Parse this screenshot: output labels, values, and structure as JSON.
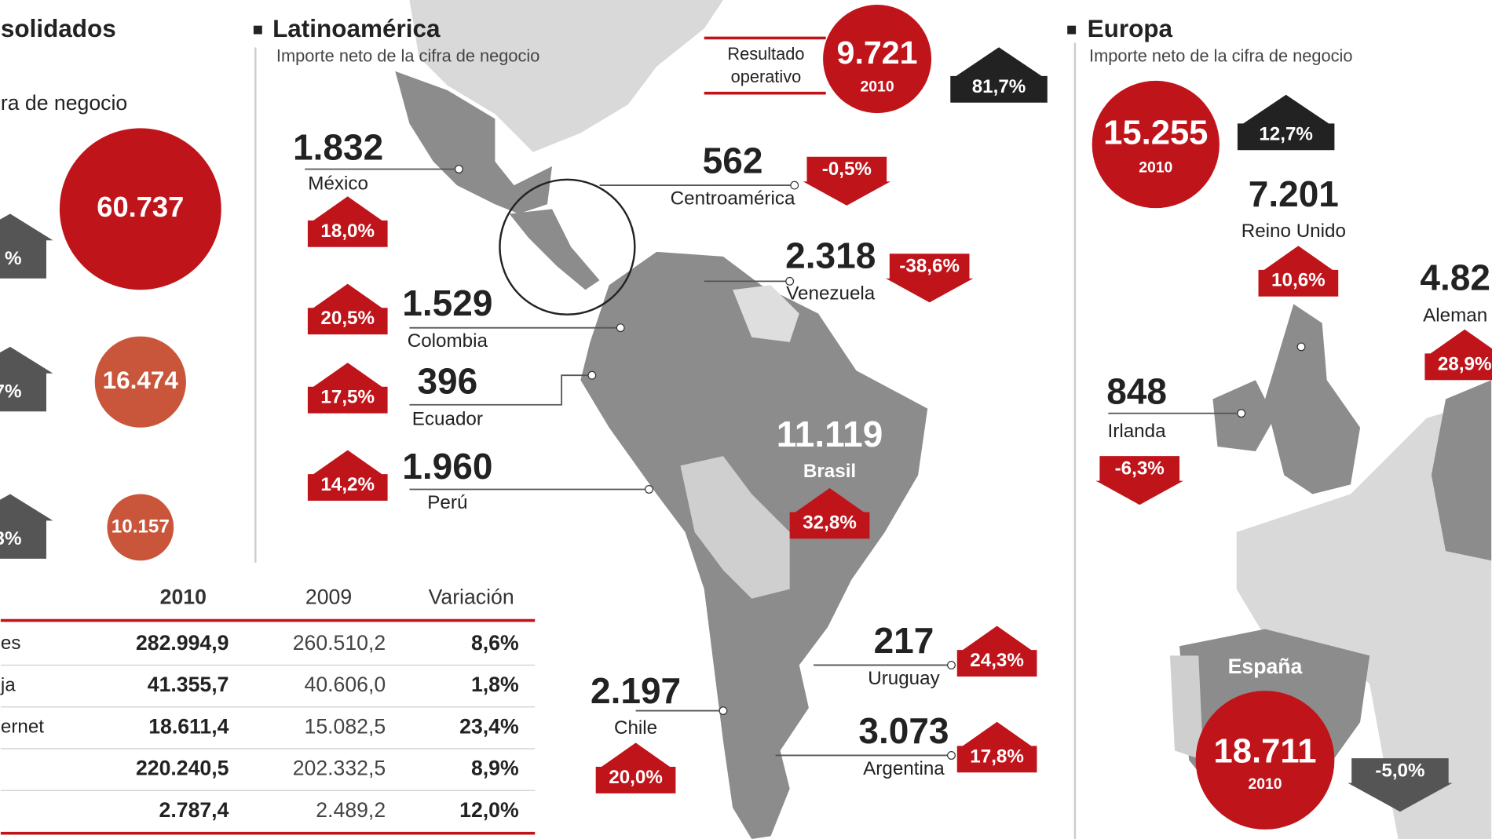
{
  "consolidated": {
    "title": "solidados",
    "subtitle": "ra de negocio",
    "circles": [
      "60.737",
      "16.474",
      "10.157"
    ],
    "arrows": [
      "%",
      "7%",
      "3%"
    ]
  },
  "latam": {
    "title": "Latinoamérica",
    "subtitle": "Importe neto de la cifra de negocio",
    "result_label": [
      "Resultado",
      "operativo"
    ],
    "result_value": "9.721",
    "result_year": "2010",
    "result_change": "81,7%",
    "countries": [
      {
        "name": "México",
        "value": "1.832",
        "change": "18,0%"
      },
      {
        "name": "Centroamérica",
        "value": "562",
        "change": "-0,5%"
      },
      {
        "name": "Venezuela",
        "value": "2.318",
        "change": "-38,6%"
      },
      {
        "name": "Colombia",
        "value": "1.529",
        "change": "20,5%"
      },
      {
        "name": "Ecuador",
        "value": "396",
        "change": "17,5%"
      },
      {
        "name": "Perú",
        "value": "1.960",
        "change": "14,2%"
      },
      {
        "name": "Brasil",
        "value": "11.119",
        "change": "32,8%"
      },
      {
        "name": "Uruguay",
        "value": "217",
        "change": "24,3%"
      },
      {
        "name": "Chile",
        "value": "2.197",
        "change": "20,0%"
      },
      {
        "name": "Argentina",
        "value": "3.073",
        "change": "17,8%"
      }
    ]
  },
  "europe": {
    "title": "Europa",
    "subtitle": "Importe neto de la cifra de negocio",
    "total_value": "15.255",
    "total_year": "2010",
    "total_change": "12,7%",
    "countries": [
      {
        "name": "Reino Unido",
        "value": "7.201",
        "change": "10,6%"
      },
      {
        "name": "Aleman",
        "value": "4.82",
        "change": "28,9%"
      },
      {
        "name": "Irlanda",
        "value": "848",
        "change": "-6,3%"
      },
      {
        "name": "España",
        "value": "18.711",
        "year": "2010",
        "change": "-5,0%"
      }
    ]
  },
  "table": {
    "header": [
      "2010",
      "2009",
      "Variación"
    ],
    "rows": [
      {
        "label": "es",
        "cells": [
          "282.994,9",
          "260.510,2",
          "8,6%"
        ]
      },
      {
        "label": "ja",
        "cells": [
          "41.355,7",
          "40.606,0",
          "1,8%"
        ]
      },
      {
        "label": "ernet",
        "cells": [
          "18.611,4",
          "15.082,5",
          "23,4%"
        ]
      },
      {
        "cells": [
          "220.240,5",
          "202.332,5",
          "8,9%"
        ]
      },
      {
        "cells": [
          "2.787,4",
          "2.489,2",
          "12,0%"
        ]
      }
    ]
  }
}
